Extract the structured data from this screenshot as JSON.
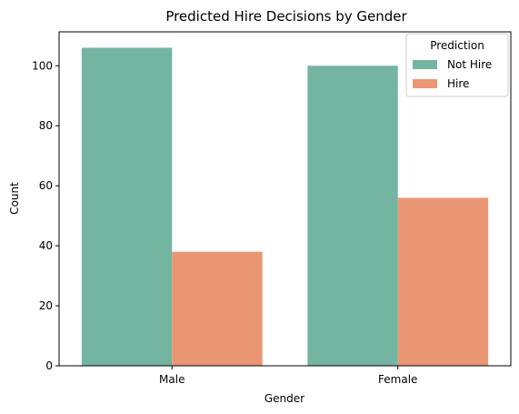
{
  "chart_data": {
    "type": "bar",
    "title": "Predicted Hire Decisions by Gender",
    "xlabel": "Gender",
    "ylabel": "Count",
    "categories": [
      "Male",
      "Female"
    ],
    "series": [
      {
        "name": "Not Hire",
        "color": "#73b5a0",
        "values": [
          106,
          100
        ]
      },
      {
        "name": "Hire",
        "color": "#ea9674",
        "values": [
          38,
          56
        ]
      }
    ],
    "ylim": [
      0,
      111.3
    ],
    "yticks": [
      0,
      20,
      40,
      60,
      80,
      100
    ],
    "grid": false,
    "legend": {
      "title": "Prediction",
      "placement": "top-right"
    }
  }
}
